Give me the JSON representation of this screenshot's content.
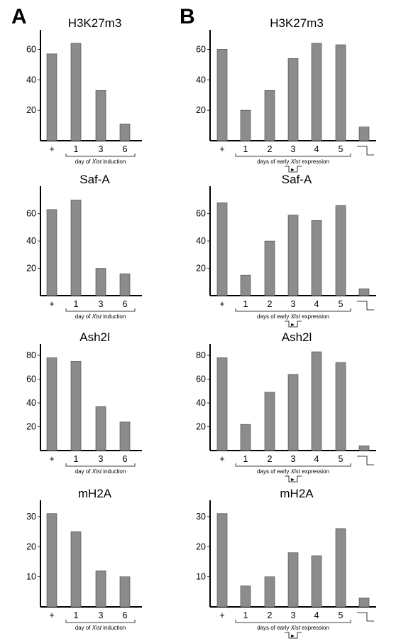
{
  "panels": [
    "A",
    "B"
  ],
  "chart_data": [
    {
      "type": "bar",
      "panel": "A",
      "title": "H3K27m3",
      "categories": [
        "+",
        "1",
        "3",
        "6"
      ],
      "values": [
        57,
        64,
        33,
        11
      ],
      "yticks": [
        20,
        40,
        60
      ],
      "ylim": [
        0,
        70
      ],
      "xlabel_pre": "day of ",
      "xlabel_em": "Xist",
      "xlabel_post": " induction"
    },
    {
      "type": "bar",
      "panel": "B",
      "title": "H3K27m3",
      "categories": [
        "+",
        "1",
        "2",
        "3",
        "4",
        "5",
        ""
      ],
      "values": [
        60,
        20,
        33,
        54,
        64,
        63,
        9
      ],
      "yticks": [
        20,
        40,
        60
      ],
      "ylim": [
        0,
        70
      ],
      "xlabel_pre": "days of early ",
      "xlabel_em": "Xist",
      "xlabel_post": " expression"
    },
    {
      "type": "bar",
      "panel": "A",
      "title": "Saf-A",
      "categories": [
        "+",
        "1",
        "3",
        "6"
      ],
      "values": [
        63,
        70,
        20,
        16
      ],
      "yticks": [
        20,
        40,
        60
      ],
      "ylim": [
        0,
        77
      ],
      "xlabel_pre": "day of ",
      "xlabel_em": "Xist",
      "xlabel_post": " induction"
    },
    {
      "type": "bar",
      "panel": "B",
      "title": "Saf-A",
      "categories": [
        "+",
        "1",
        "2",
        "3",
        "4",
        "5",
        ""
      ],
      "values": [
        68,
        15,
        40,
        59,
        55,
        66,
        5
      ],
      "yticks": [
        20,
        40,
        60
      ],
      "ylim": [
        0,
        77
      ],
      "xlabel_pre": "days of early ",
      "xlabel_em": "Xist",
      "xlabel_post": " expression"
    },
    {
      "type": "bar",
      "panel": "A",
      "title": "Ash2l",
      "categories": [
        "+",
        "1",
        "3",
        "6"
      ],
      "values": [
        78,
        75,
        37,
        24
      ],
      "yticks": [
        20,
        40,
        60,
        80
      ],
      "ylim": [
        0,
        86
      ],
      "xlabel_pre": "day of ",
      "xlabel_em": "Xist",
      "xlabel_post": " induction"
    },
    {
      "type": "bar",
      "panel": "B",
      "title": "Ash2l",
      "categories": [
        "+",
        "1",
        "2",
        "3",
        "4",
        "5",
        ""
      ],
      "values": [
        78,
        22,
        49,
        64,
        83,
        74,
        4
      ],
      "yticks": [
        20,
        40,
        60,
        80
      ],
      "ylim": [
        0,
        86
      ],
      "xlabel_pre": "days of early ",
      "xlabel_em": "Xist",
      "xlabel_post": " expression"
    },
    {
      "type": "bar",
      "panel": "A",
      "title": "mH2A",
      "categories": [
        "+",
        "1",
        "3",
        "6"
      ],
      "values": [
        31,
        25,
        12,
        10
      ],
      "yticks": [
        10,
        20,
        30
      ],
      "ylim": [
        0,
        34
      ],
      "xlabel_pre": "day of ",
      "xlabel_em": "Xist",
      "xlabel_post": " induction"
    },
    {
      "type": "bar",
      "panel": "B",
      "title": "mH2A",
      "categories": [
        "+",
        "1",
        "2",
        "3",
        "4",
        "5",
        ""
      ],
      "values": [
        31,
        7,
        10,
        18,
        17,
        26,
        3
      ],
      "yticks": [
        10,
        20,
        30
      ],
      "ylim": [
        0,
        34
      ],
      "xlabel_pre": "days of early ",
      "xlabel_em": "Xist",
      "xlabel_post": " expression"
    }
  ]
}
